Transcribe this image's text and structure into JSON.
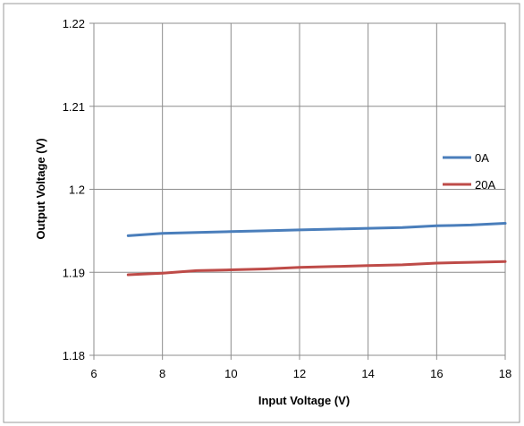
{
  "chart_data": {
    "type": "line",
    "title": "",
    "xlabel": "Input Voltage (V)",
    "ylabel": "Output Voltage (V)",
    "xlim": [
      6,
      18
    ],
    "ylim": [
      1.18,
      1.22
    ],
    "x_ticks": [
      "6",
      "8",
      "10",
      "12",
      "14",
      "16",
      "18"
    ],
    "y_ticks": [
      "1.18",
      "1.19",
      "1.2",
      "1.21",
      "1.22"
    ],
    "grid": true,
    "legend_position": "right",
    "series": [
      {
        "name": "0A",
        "color": "#4a7ebb",
        "x": [
          7,
          8,
          9,
          10,
          11,
          12,
          13,
          14,
          15,
          16,
          17,
          18
        ],
        "y": [
          1.1944,
          1.1947,
          1.1948,
          1.1949,
          1.195,
          1.1951,
          1.1952,
          1.1953,
          1.1954,
          1.1956,
          1.1957,
          1.1959
        ]
      },
      {
        "name": "20A",
        "color": "#be4b48",
        "x": [
          7,
          8,
          9,
          10,
          11,
          12,
          13,
          14,
          15,
          16,
          17,
          18
        ],
        "y": [
          1.1897,
          1.1899,
          1.1902,
          1.1903,
          1.1904,
          1.1906,
          1.1907,
          1.1908,
          1.1909,
          1.1911,
          1.1912,
          1.1913
        ]
      }
    ]
  }
}
